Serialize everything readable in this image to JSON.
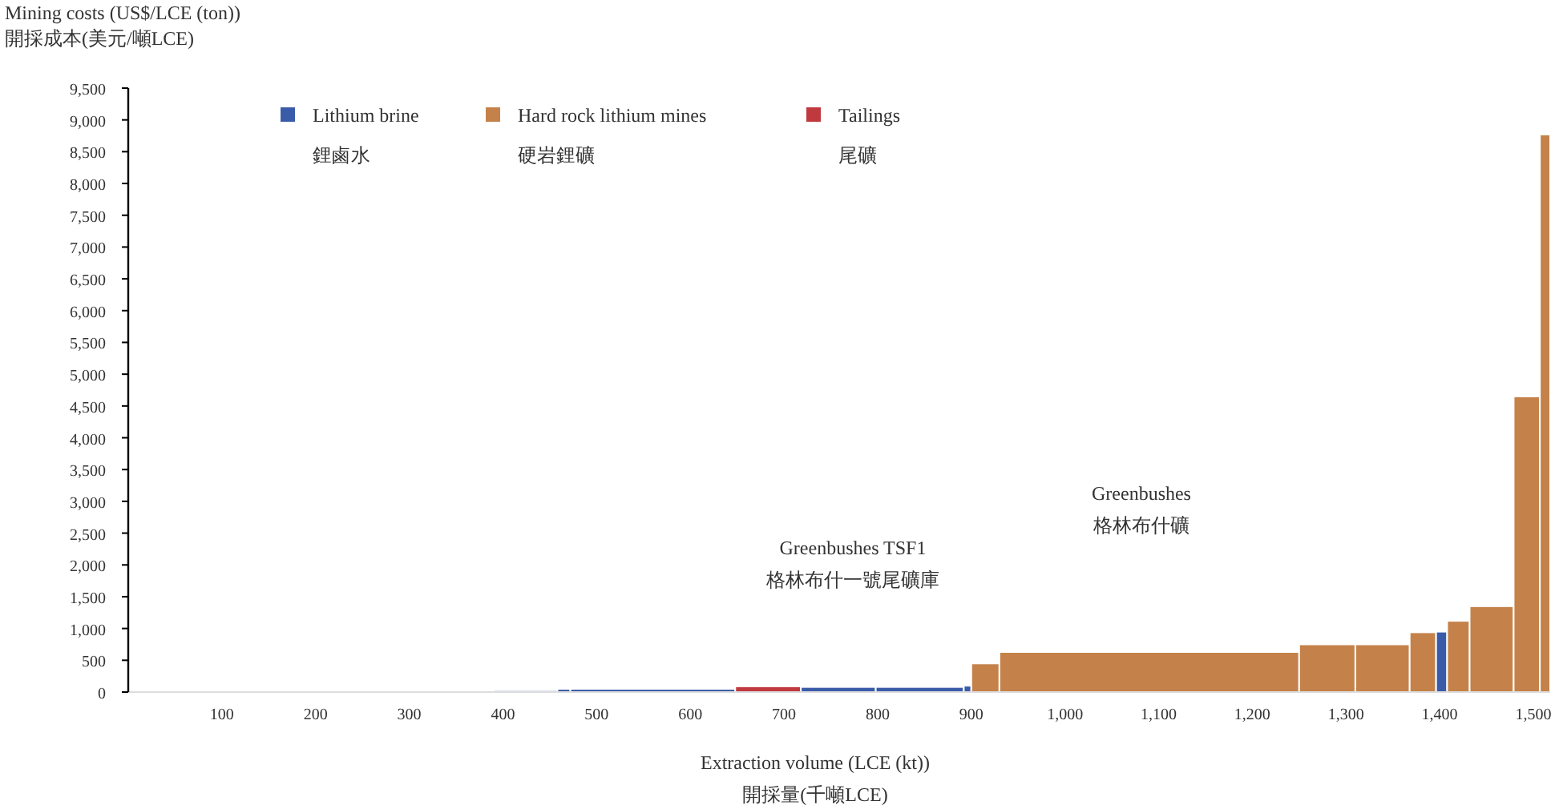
{
  "chart_data": {
    "type": "histogram",
    "ylabel": "Mining costs (US$/LCE (ton))\n開採成本(美元/噸LCE)",
    "xlabel": "Extraction volume (LCE (kt))\n開採量(千噸LCE)",
    "bins": [
      390,
      458,
      472,
      648,
      718,
      798,
      892,
      900,
      930,
      1250,
      1310,
      1368,
      1396,
      1408,
      1432,
      1479,
      1507,
      1518
    ],
    "series": [
      {
        "name": "Lithium brine\n鋰鹵水",
        "color": "#3a5ba8",
        "values": [
          null,
          50,
          50,
          null,
          80,
          80,
          100,
          null,
          null,
          null,
          null,
          null,
          950,
          null,
          null,
          null,
          null
        ]
      },
      {
        "name": "Hard rock lithium mines\n硬岩鋰礦",
        "color": "#c4824a",
        "values": [
          null,
          null,
          null,
          null,
          null,
          null,
          null,
          450,
          630,
          750,
          750,
          940,
          null,
          1120,
          1350,
          4650,
          8770
        ]
      },
      {
        "name": "Tailings\n尾礦",
        "color": "#c0393f",
        "values": [
          null,
          null,
          null,
          90,
          null,
          null,
          null,
          null,
          null,
          null,
          null,
          null,
          null,
          null,
          null,
          null,
          null
        ]
      },
      {
        "color": "#dfe3ef",
        "values": [
          40,
          null,
          null,
          null,
          null,
          null,
          null,
          null,
          null,
          null,
          null,
          null,
          null,
          null,
          null,
          null,
          null
        ]
      }
    ],
    "xlim": [
      0,
      1518
    ],
    "ylim": [
      0,
      9500
    ],
    "xticks": [
      100,
      200,
      300,
      400,
      500,
      600,
      700,
      800,
      900,
      {
        "value": 1000,
        "label": "1,000"
      },
      {
        "value": 1100,
        "label": "1,100"
      },
      {
        "value": 1200,
        "label": "1,200"
      },
      {
        "value": 1300,
        "label": "1,300"
      },
      {
        "value": 1400,
        "label": "1,400"
      },
      {
        "value": 1500,
        "label": "1,500"
      }
    ],
    "yticks": [
      0,
      500,
      {
        "value": 1000,
        "label": "1,000"
      },
      {
        "value": 1500,
        "label": "1,500"
      },
      {
        "value": 2000,
        "label": "2,000"
      },
      {
        "value": 2500,
        "label": "2,500"
      },
      {
        "value": 3000,
        "label": "3,000"
      },
      {
        "value": 3500,
        "label": "3,500"
      },
      {
        "value": 4000,
        "label": "4,000"
      },
      {
        "value": 4500,
        "label": "4,500"
      },
      {
        "value": 5000,
        "label": "5,000"
      },
      {
        "value": 5500,
        "label": "5,500"
      },
      {
        "value": 6000,
        "label": "6,000"
      },
      {
        "value": 6500,
        "label": "6,500"
      },
      {
        "value": 7000,
        "label": "7,000"
      },
      {
        "value": 7500,
        "label": "7,500"
      },
      {
        "value": 8000,
        "label": "8,000"
      },
      {
        "value": 8500,
        "label": "8,500"
      },
      {
        "value": 9000,
        "label": "9,000"
      },
      {
        "value": 9500,
        "label": "9,500"
      }
    ],
    "annotations": [
      "Greenbushes TSF1\n格林布什一號尾礦庫",
      "Greenbushes\n格林布什礦"
    ],
    "legend": "top",
    "grid": false
  }
}
